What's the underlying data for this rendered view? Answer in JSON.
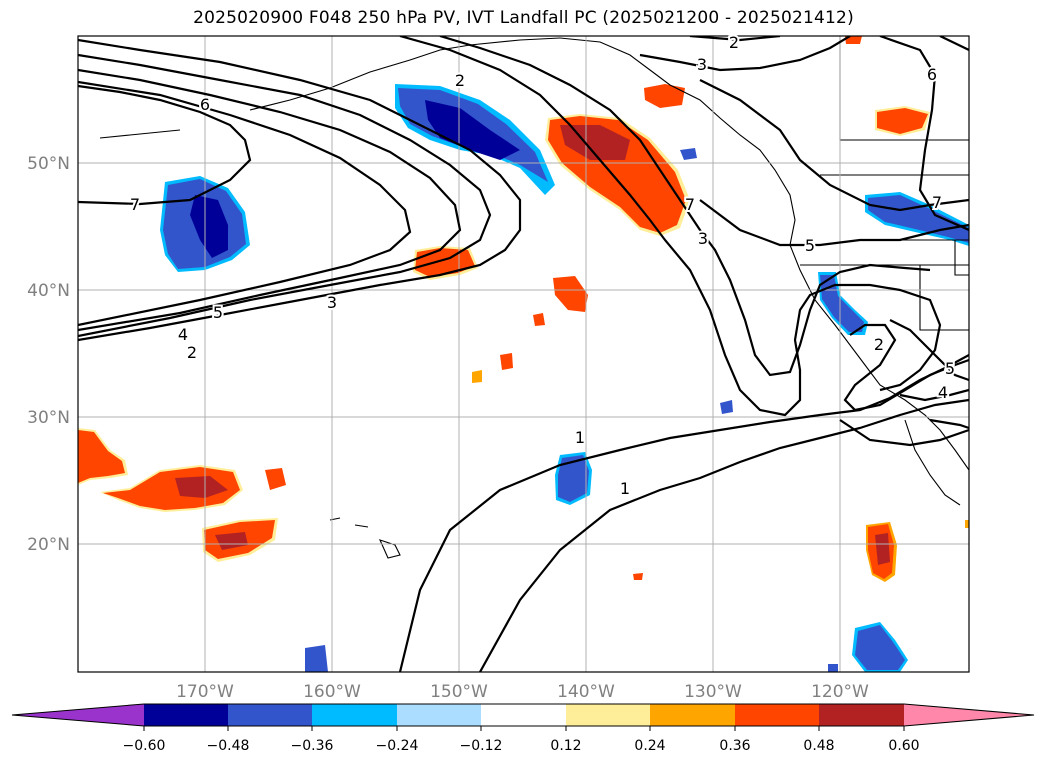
{
  "title": "2025020900 F048 250 hPa PV, IVT Landfall PC (2025021200 - 2025021412)",
  "lat_labels": [
    "50°N",
    "40°N",
    "30°N",
    "20°N"
  ],
  "lon_labels": [
    "170°W",
    "160°W",
    "150°W",
    "140°W",
    "130°W",
    "120°W"
  ],
  "contour_labels": [
    "2",
    "3",
    "6",
    "7",
    "2",
    "5",
    "3",
    "4",
    "2",
    "7",
    "3",
    "5",
    "6",
    "7",
    "2",
    "5",
    "4",
    "1",
    "1"
  ],
  "colorbar": {
    "ticks": [
      "−0.60",
      "−0.48",
      "−0.36",
      "−0.24",
      "−0.12",
      "0.12",
      "0.24",
      "0.36",
      "0.48",
      "0.60"
    ],
    "colors": {
      "under": "#9933cc",
      "c1": "#000099",
      "c2": "#3355cc",
      "c3": "#00bbff",
      "c4": "#aaddff",
      "c5": "#ffffff",
      "c6": "#ffee99",
      "c7": "#ffa500",
      "c8": "#ff4500",
      "c9": "#b22222",
      "over": "#ff88aa"
    }
  }
}
